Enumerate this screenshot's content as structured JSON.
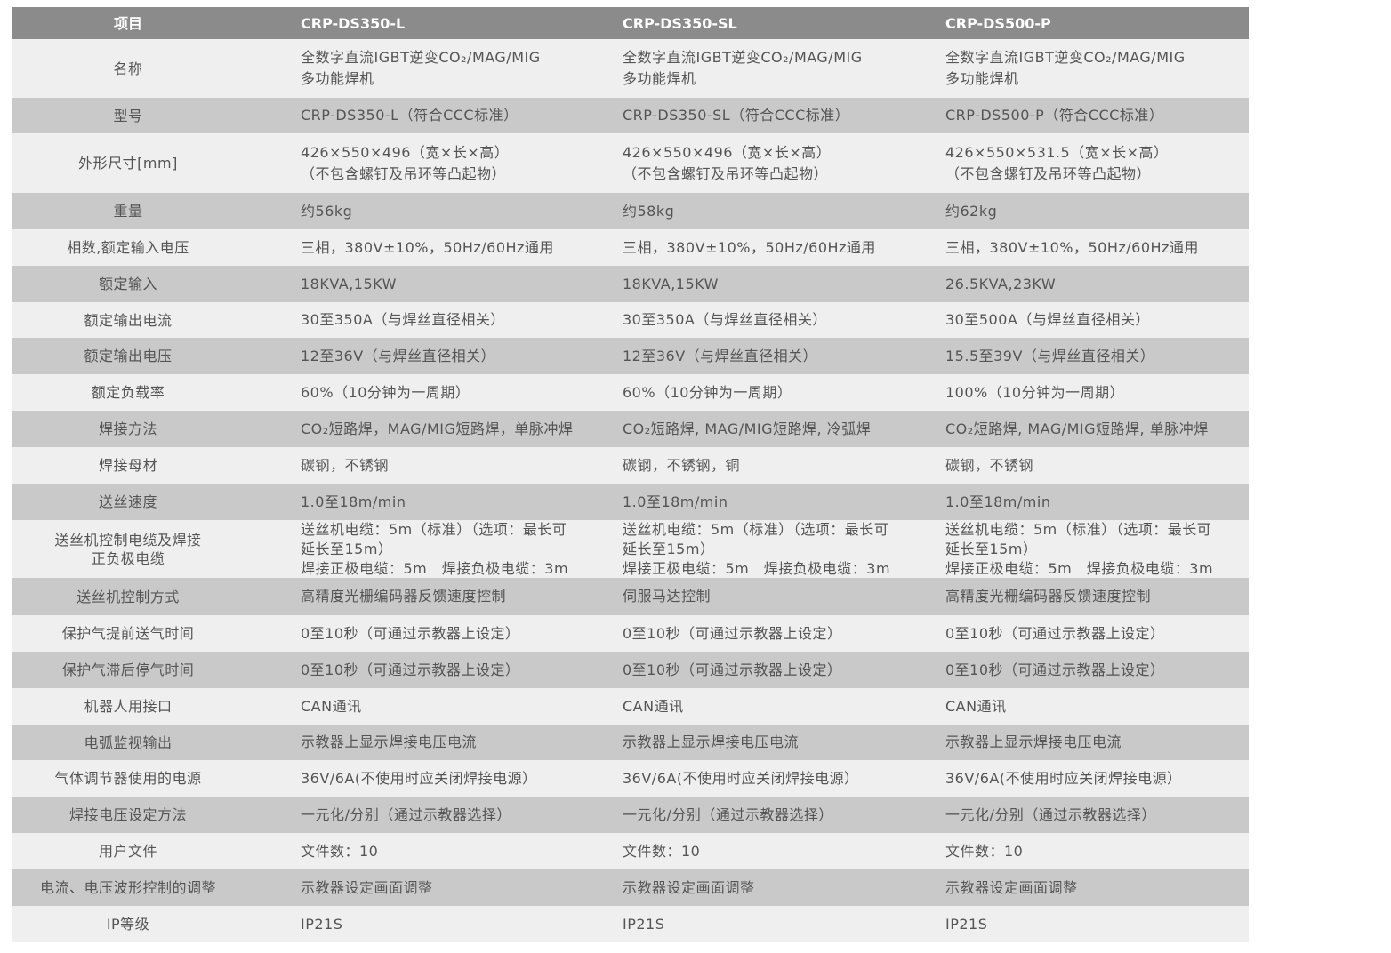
{
  "header": [
    "项目",
    "CRP-DS350-L",
    "CRP-DS350-SL",
    "CRP-DS500-P"
  ],
  "colors": {
    "header_bg": "#8b8b8b",
    "row_light": "#efefef",
    "row_dark": "#c9c9c9",
    "text": "#555555"
  },
  "rows": [
    {
      "label": "名称",
      "values": [
        "全数字直流IGBT逆变CO₂/MAG/MIG\n多功能焊机",
        "全数字直流IGBT逆变CO₂/MAG/MIG\n多功能焊机",
        "全数字直流IGBT逆变CO₂/MAG/MIG\n多功能焊机"
      ]
    },
    {
      "label": "型号",
      "values": [
        "CRP-DS350-L（符合CCC标准）",
        "CRP-DS350-SL（符合CCC标准）",
        "CRP-DS500-P（符合CCC标准）"
      ]
    },
    {
      "label": "外形尺寸[mm]",
      "values": [
        "426×550×496（宽×长×高）\n（不包含螺钉及吊环等凸起物）",
        "426×550×496（宽×长×高）\n（不包含螺钉及吊环等凸起物）",
        "426×550×531.5（宽×长×高）\n（不包含螺钉及吊环等凸起物）"
      ]
    },
    {
      "label": "重量",
      "values": [
        "约56kg",
        "约58kg",
        "约62kg"
      ]
    },
    {
      "label": "相数,额定输入电压",
      "values": [
        "三相，380V±10%，50Hz/60Hz通用",
        "三相，380V±10%，50Hz/60Hz通用",
        "三相，380V±10%，50Hz/60Hz通用"
      ]
    },
    {
      "label": "额定输入",
      "values": [
        "18KVA,15KW",
        "18KVA,15KW",
        "26.5KVA,23KW"
      ]
    },
    {
      "label": "额定输出电流",
      "values": [
        "30至350A（与焊丝直径相关）",
        "30至350A（与焊丝直径相关）",
        "30至500A（与焊丝直径相关）"
      ]
    },
    {
      "label": "额定输出电压",
      "values": [
        "12至36V（与焊丝直径相关）",
        "12至36V（与焊丝直径相关）",
        "15.5至39V（与焊丝直径相关）"
      ]
    },
    {
      "label": "额定负载率",
      "values": [
        "60%（10分钟为一周期）",
        "60%（10分钟为一周期）",
        "100%（10分钟为一周期）"
      ]
    },
    {
      "label": "焊接方法",
      "values": [
        "CO₂短路焊，MAG/MIG短路焊，单脉冲焊",
        "CO₂短路焊, MAG/MIG短路焊, 冷弧焊",
        "CO₂短路焊, MAG/MIG短路焊, 单脉冲焊"
      ]
    },
    {
      "label": "焊接母材",
      "values": [
        "碳钢，不锈钢",
        "碳钢，不锈钢，铜",
        "碳钢，不锈钢"
      ]
    },
    {
      "label": "送丝速度",
      "values": [
        "1.0至18m/min",
        "1.0至18m/min",
        "1.0至18m/min"
      ]
    },
    {
      "label": "送丝机控制电缆及焊接\n正负极电缆",
      "values": [
        "送丝机电缆：5m（标准）（选项：最长可\n延长至15m）\n焊接正极电缆：5m　焊接负极电缆：3m",
        "送丝机电缆：5m（标准）（选项：最长可\n延长至15m）\n焊接正极电缆：5m　焊接负极电缆：3m",
        "送丝机电缆：5m（标准）（选项：最长可\n延长至15m）\n焊接正极电缆：5m　焊接负极电缆：3m"
      ]
    },
    {
      "label": "送丝机控制方式",
      "values": [
        "高精度光栅编码器反馈速度控制",
        "伺服马达控制",
        "高精度光栅编码器反馈速度控制"
      ]
    },
    {
      "label": "保护气提前送气时间",
      "values": [
        "0至10秒（可通过示教器上设定）",
        "0至10秒（可通过示教器上设定）",
        "0至10秒（可通过示教器上设定）"
      ]
    },
    {
      "label": "保护气滞后停气时间",
      "values": [
        "0至10秒（可通过示教器上设定）",
        "0至10秒（可通过示教器上设定）",
        "0至10秒（可通过示教器上设定）"
      ]
    },
    {
      "label": "机器人用接口",
      "values": [
        "CAN通讯",
        "CAN通讯",
        "CAN通讯"
      ]
    },
    {
      "label": "电弧监视输出",
      "values": [
        "示教器上显示焊接电压电流",
        "示教器上显示焊接电压电流",
        "示教器上显示焊接电压电流"
      ]
    },
    {
      "label": "气体调节器使用的电源",
      "values": [
        "36V/6A(不使用时应关闭焊接电源）",
        "36V/6A(不使用时应关闭焊接电源）",
        "36V/6A(不使用时应关闭焊接电源）"
      ]
    },
    {
      "label": "焊接电压设定方法",
      "values": [
        "一元化/分别（通过示教器选择）",
        "一元化/分别（通过示教器选择）",
        "一元化/分别（通过示教器选择）"
      ]
    },
    {
      "label": "用户文件",
      "values": [
        "文件数：10",
        "文件数：10",
        "文件数：10"
      ]
    },
    {
      "label": "电流、电压波形控制的调整",
      "values": [
        "示教器设定画面调整",
        "示教器设定画面调整",
        "示教器设定画面调整"
      ]
    },
    {
      "label": "IP等级",
      "values": [
        "IP21S",
        "IP21S",
        "IP21S"
      ]
    }
  ]
}
